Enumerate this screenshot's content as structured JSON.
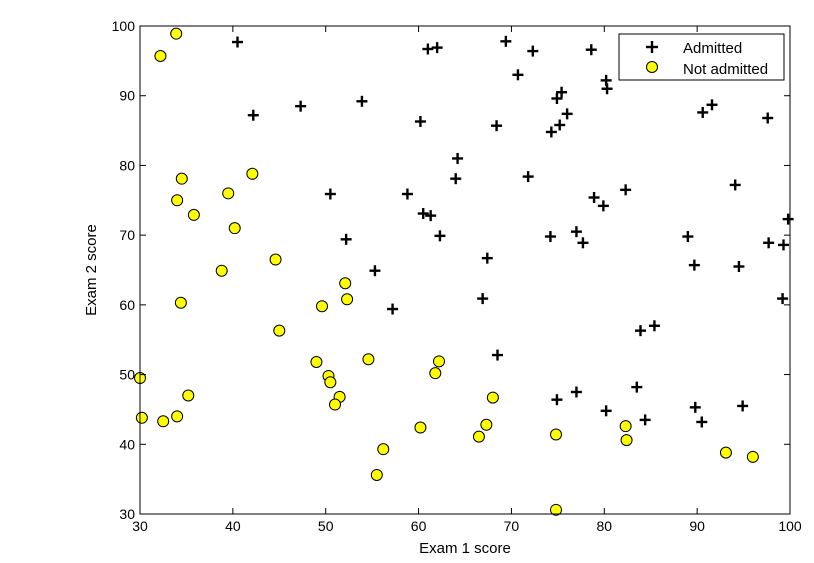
{
  "chart_data": {
    "type": "scatter",
    "xlabel": "Exam 1 score",
    "ylabel": "Exam 2 score",
    "xlim": [
      30,
      100
    ],
    "ylim": [
      30,
      100
    ],
    "xticks": [
      30,
      40,
      50,
      60,
      70,
      80,
      90,
      100
    ],
    "yticks": [
      30,
      40,
      50,
      60,
      70,
      80,
      90,
      100
    ],
    "grid": false,
    "legend_position": "top-right",
    "series": [
      {
        "name": "Admitted",
        "marker": "plus",
        "color": "#000000",
        "points": [
          [
            40.5,
            97.7
          ],
          [
            61.0,
            96.7
          ],
          [
            62.0,
            96.9
          ],
          [
            69.4,
            97.8
          ],
          [
            72.3,
            96.4
          ],
          [
            78.6,
            96.6
          ],
          [
            70.7,
            93.0
          ],
          [
            80.2,
            92.2
          ],
          [
            80.3,
            91.0
          ],
          [
            75.4,
            90.5
          ],
          [
            74.9,
            89.6
          ],
          [
            47.3,
            88.5
          ],
          [
            53.9,
            89.2
          ],
          [
            91.6,
            88.7
          ],
          [
            90.6,
            87.6
          ],
          [
            97.6,
            86.8
          ],
          [
            42.2,
            87.2
          ],
          [
            76.0,
            87.4
          ],
          [
            60.2,
            86.3
          ],
          [
            68.4,
            85.7
          ],
          [
            75.2,
            85.8
          ],
          [
            74.3,
            84.8
          ],
          [
            64.2,
            81.0
          ],
          [
            64.0,
            78.1
          ],
          [
            71.8,
            78.4
          ],
          [
            94.1,
            77.2
          ],
          [
            82.3,
            76.5
          ],
          [
            50.5,
            75.9
          ],
          [
            58.8,
            75.9
          ],
          [
            78.9,
            75.4
          ],
          [
            79.9,
            74.2
          ],
          [
            60.5,
            73.1
          ],
          [
            61.3,
            72.8
          ],
          [
            99.8,
            72.3
          ],
          [
            74.2,
            69.8
          ],
          [
            77.0,
            70.5
          ],
          [
            62.3,
            69.9
          ],
          [
            89.0,
            69.8
          ],
          [
            52.2,
            69.4
          ],
          [
            77.7,
            68.9
          ],
          [
            97.7,
            68.9
          ],
          [
            99.3,
            68.6
          ],
          [
            67.4,
            66.7
          ],
          [
            89.7,
            65.7
          ],
          [
            94.5,
            65.5
          ],
          [
            55.3,
            64.9
          ],
          [
            66.9,
            60.9
          ],
          [
            99.2,
            60.9
          ],
          [
            57.2,
            59.4
          ],
          [
            85.4,
            57.0
          ],
          [
            83.9,
            56.3
          ],
          [
            68.5,
            52.8
          ],
          [
            83.5,
            48.2
          ],
          [
            77.0,
            47.5
          ],
          [
            74.9,
            46.4
          ],
          [
            94.9,
            45.5
          ],
          [
            89.8,
            45.3
          ],
          [
            80.2,
            44.8
          ],
          [
            84.4,
            43.5
          ],
          [
            90.5,
            43.2
          ]
        ]
      },
      {
        "name": "Not admitted",
        "marker": "circle",
        "color": "#ffff00",
        "points": [
          [
            33.9,
            98.9
          ],
          [
            32.2,
            95.7
          ],
          [
            34.5,
            78.1
          ],
          [
            42.1,
            78.8
          ],
          [
            39.5,
            76.0
          ],
          [
            34.0,
            75.0
          ],
          [
            35.8,
            72.9
          ],
          [
            40.2,
            71.0
          ],
          [
            44.6,
            66.5
          ],
          [
            38.8,
            64.9
          ],
          [
            52.1,
            63.1
          ],
          [
            34.4,
            60.3
          ],
          [
            52.3,
            60.8
          ],
          [
            49.6,
            59.8
          ],
          [
            45.0,
            56.3
          ],
          [
            49.0,
            51.8
          ],
          [
            54.6,
            52.2
          ],
          [
            62.2,
            51.9
          ],
          [
            30.0,
            49.5
          ],
          [
            61.8,
            50.2
          ],
          [
            50.3,
            49.8
          ],
          [
            50.5,
            48.9
          ],
          [
            35.2,
            47.0
          ],
          [
            68.0,
            46.7
          ],
          [
            51.5,
            46.8
          ],
          [
            51.0,
            45.7
          ],
          [
            30.2,
            43.8
          ],
          [
            32.5,
            43.3
          ],
          [
            34.0,
            44.0
          ],
          [
            60.2,
            42.4
          ],
          [
            67.3,
            42.8
          ],
          [
            82.3,
            42.6
          ],
          [
            66.5,
            41.1
          ],
          [
            74.8,
            41.4
          ],
          [
            82.4,
            40.6
          ],
          [
            56.2,
            39.3
          ],
          [
            93.1,
            38.8
          ],
          [
            96.0,
            38.2
          ],
          [
            55.5,
            35.6
          ],
          [
            74.8,
            30.6
          ]
        ]
      }
    ]
  }
}
